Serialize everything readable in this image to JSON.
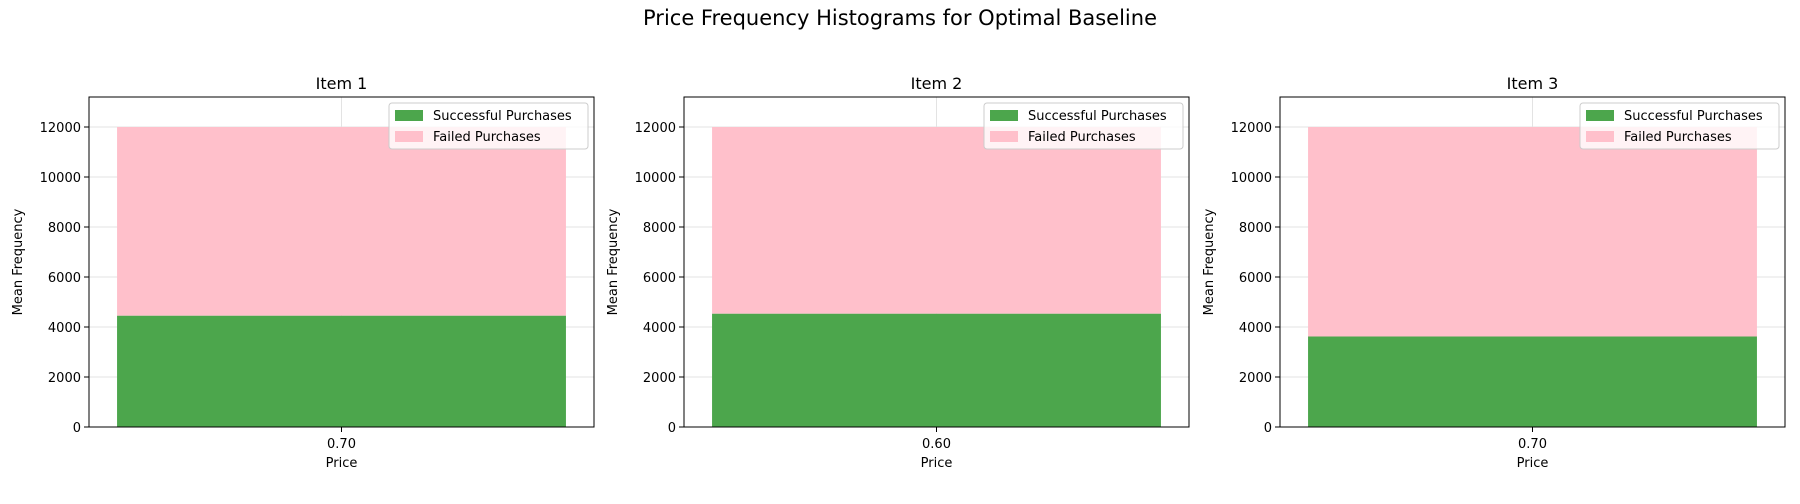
{
  "figure": {
    "title": "Price Frequency Histograms for Optimal Baseline"
  },
  "colors": {
    "success": "#4ca64c",
    "failed": "#ffc0cb",
    "grid": "#e3e3e3",
    "axis": "#000000",
    "legend_border": "#cccccc"
  },
  "legend": {
    "success_label": "Successful Purchases",
    "failed_label": "Failed Purchases",
    "position": "upper-right"
  },
  "chart_data": [
    {
      "type": "bar",
      "stacked": true,
      "title": "Item 1",
      "xlabel": "Price",
      "ylabel": "Mean Frequency",
      "categories": [
        "0.70"
      ],
      "ylim": [
        0,
        13200
      ],
      "yticks": [
        0,
        2000,
        4000,
        6000,
        8000,
        10000,
        12000
      ],
      "grid": true,
      "legend_position": "upper-right",
      "series": [
        {
          "name": "Successful Purchases",
          "values": [
            4450
          ]
        },
        {
          "name": "Failed Purchases",
          "values": [
            7550
          ]
        }
      ]
    },
    {
      "type": "bar",
      "stacked": true,
      "title": "Item 2",
      "xlabel": "Price",
      "ylabel": "Mean Frequency",
      "categories": [
        "0.60"
      ],
      "ylim": [
        0,
        13200
      ],
      "yticks": [
        0,
        2000,
        4000,
        6000,
        8000,
        10000,
        12000
      ],
      "grid": true,
      "legend_position": "upper-right",
      "series": [
        {
          "name": "Successful Purchases",
          "values": [
            4530
          ]
        },
        {
          "name": "Failed Purchases",
          "values": [
            7470
          ]
        }
      ]
    },
    {
      "type": "bar",
      "stacked": true,
      "title": "Item 3",
      "xlabel": "Price",
      "ylabel": "Mean Frequency",
      "categories": [
        "0.70"
      ],
      "ylim": [
        0,
        13200
      ],
      "yticks": [
        0,
        2000,
        4000,
        6000,
        8000,
        10000,
        12000
      ],
      "grid": true,
      "legend_position": "upper-right",
      "series": [
        {
          "name": "Successful Purchases",
          "values": [
            3620
          ]
        },
        {
          "name": "Failed Purchases",
          "values": [
            8380
          ]
        }
      ]
    }
  ]
}
